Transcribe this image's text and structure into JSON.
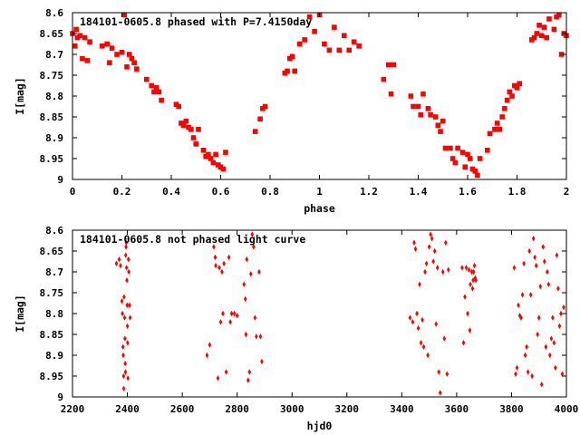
{
  "colors": {
    "marker": "#ff0000",
    "axis": "#000000",
    "background": "#ffffff"
  },
  "chart_data": [
    {
      "type": "scatter",
      "title": "184101-0605.8 phased with P=7.4150day",
      "xlabel": "phase",
      "ylabel": "I[mag]",
      "xlim": [
        0,
        2
      ],
      "ylim": [
        8.6,
        9
      ],
      "y_inverted": true,
      "grid": false,
      "legend": "none",
      "xticks": [
        "0",
        "0.2",
        "0.4",
        "0.6",
        "0.8",
        "1",
        "1.2",
        "1.4",
        "1.6",
        "1.8",
        "2"
      ],
      "yticks": [
        "8.6",
        "8.65",
        "8.7",
        "8.75",
        "8.8",
        "8.85",
        "8.9",
        "8.95",
        "9"
      ],
      "points": [
        [
          0.0,
          8.65
        ],
        [
          0.01,
          8.68
        ],
        [
          0.015,
          8.64
        ],
        [
          0.02,
          8.66
        ],
        [
          0.03,
          8.655
        ],
        [
          0.04,
          8.71
        ],
        [
          0.05,
          8.66
        ],
        [
          0.06,
          8.715
        ],
        [
          0.07,
          8.67
        ],
        [
          0.12,
          8.68
        ],
        [
          0.14,
          8.675
        ],
        [
          0.15,
          8.72
        ],
        [
          0.16,
          8.685
        ],
        [
          0.18,
          8.7
        ],
        [
          0.2,
          8.695
        ],
        [
          0.21,
          8.605
        ],
        [
          0.22,
          8.73
        ],
        [
          0.23,
          8.7
        ],
        [
          0.24,
          8.71
        ],
        [
          0.25,
          8.72
        ],
        [
          0.26,
          8.735
        ],
        [
          0.3,
          8.76
        ],
        [
          0.32,
          8.775
        ],
        [
          0.33,
          8.79
        ],
        [
          0.34,
          8.78
        ],
        [
          0.35,
          8.79
        ],
        [
          0.36,
          8.81
        ],
        [
          0.42,
          8.82
        ],
        [
          0.43,
          8.825
        ],
        [
          0.44,
          8.865
        ],
        [
          0.45,
          8.87
        ],
        [
          0.46,
          8.86
        ],
        [
          0.47,
          8.875
        ],
        [
          0.48,
          8.88
        ],
        [
          0.49,
          8.9
        ],
        [
          0.5,
          8.915
        ],
        [
          0.51,
          8.88
        ],
        [
          0.53,
          8.93
        ],
        [
          0.54,
          8.945
        ],
        [
          0.55,
          8.94
        ],
        [
          0.56,
          8.95
        ],
        [
          0.57,
          8.96
        ],
        [
          0.58,
          8.94
        ],
        [
          0.59,
          8.965
        ],
        [
          0.6,
          8.97
        ],
        [
          0.61,
          8.975
        ],
        [
          0.62,
          8.935
        ],
        [
          0.74,
          8.885
        ],
        [
          0.76,
          8.855
        ],
        [
          0.77,
          8.83
        ],
        [
          0.78,
          8.825
        ],
        [
          0.86,
          8.745
        ],
        [
          0.87,
          8.74
        ],
        [
          0.88,
          8.71
        ],
        [
          0.89,
          8.705
        ],
        [
          0.9,
          8.74
        ],
        [
          0.92,
          8.675
        ],
        [
          0.94,
          8.665
        ],
        [
          0.96,
          8.61
        ],
        [
          0.98,
          8.645
        ],
        [
          1.0,
          8.605
        ],
        [
          1.02,
          8.675
        ],
        [
          1.04,
          8.69
        ],
        [
          1.06,
          8.635
        ],
        [
          1.08,
          8.69
        ],
        [
          1.1,
          8.655
        ],
        [
          1.12,
          8.69
        ],
        [
          1.14,
          8.67
        ],
        [
          1.16,
          8.68
        ],
        [
          1.26,
          8.76
        ],
        [
          1.28,
          8.725
        ],
        [
          1.29,
          8.795
        ],
        [
          1.3,
          8.725
        ],
        [
          1.37,
          8.8
        ],
        [
          1.38,
          8.825
        ],
        [
          1.4,
          8.825
        ],
        [
          1.41,
          8.845
        ],
        [
          1.42,
          8.795
        ],
        [
          1.44,
          8.83
        ],
        [
          1.45,
          8.845
        ],
        [
          1.47,
          8.85
        ],
        [
          1.48,
          8.87
        ],
        [
          1.49,
          8.885
        ],
        [
          1.5,
          8.86
        ],
        [
          1.51,
          8.925
        ],
        [
          1.53,
          8.925
        ],
        [
          1.54,
          8.95
        ],
        [
          1.55,
          8.96
        ],
        [
          1.56,
          8.925
        ],
        [
          1.58,
          8.935
        ],
        [
          1.59,
          8.97
        ],
        [
          1.6,
          8.94
        ],
        [
          1.61,
          8.95
        ],
        [
          1.62,
          8.975
        ],
        [
          1.63,
          8.98
        ],
        [
          1.64,
          8.99
        ],
        [
          1.65,
          8.95
        ],
        [
          1.68,
          8.93
        ],
        [
          1.69,
          8.89
        ],
        [
          1.71,
          8.88
        ],
        [
          1.72,
          8.865
        ],
        [
          1.73,
          8.88
        ],
        [
          1.74,
          8.85
        ],
        [
          1.75,
          8.83
        ],
        [
          1.76,
          8.81
        ],
        [
          1.77,
          8.79
        ],
        [
          1.78,
          8.8
        ],
        [
          1.79,
          8.775
        ],
        [
          1.8,
          8.78
        ],
        [
          1.81,
          8.77
        ],
        [
          1.86,
          8.665
        ],
        [
          1.87,
          8.66
        ],
        [
          1.88,
          8.65
        ],
        [
          1.89,
          8.63
        ],
        [
          1.9,
          8.655
        ],
        [
          1.91,
          8.635
        ],
        [
          1.92,
          8.66
        ],
        [
          1.93,
          8.615
        ],
        [
          1.95,
          8.64
        ],
        [
          1.96,
          8.61
        ],
        [
          1.97,
          8.605
        ],
        [
          1.98,
          8.7
        ],
        [
          1.99,
          8.65
        ],
        [
          2.0,
          8.655
        ]
      ]
    },
    {
      "type": "scatter",
      "title": "184101-0605.8 not phased light curve",
      "xlabel": "hjd0",
      "ylabel": "I[mag]",
      "xlim": [
        2200,
        4000
      ],
      "ylim": [
        8.6,
        9
      ],
      "y_inverted": true,
      "grid": false,
      "legend": "none",
      "xticks": [
        "2200",
        "2400",
        "2600",
        "2800",
        "3000",
        "3200",
        "3400",
        "3600",
        "3800",
        "4000"
      ],
      "yticks": [
        "8.6",
        "8.65",
        "8.7",
        "8.75",
        "8.8",
        "8.85",
        "8.9",
        "8.95",
        "9"
      ],
      "points": [
        [
          2360,
          8.68
        ],
        [
          2370,
          8.67
        ],
        [
          2375,
          8.685
        ],
        [
          2380,
          8.77
        ],
        [
          2382,
          8.8
        ],
        [
          2384,
          8.88
        ],
        [
          2385,
          8.9
        ],
        [
          2386,
          8.95
        ],
        [
          2387,
          8.98
        ],
        [
          2388,
          8.76
        ],
        [
          2390,
          8.81
        ],
        [
          2391,
          8.86
        ],
        [
          2392,
          8.92
        ],
        [
          2393,
          8.94
        ],
        [
          2394,
          8.66
        ],
        [
          2395,
          8.64
        ],
        [
          2396,
          8.63
        ],
        [
          2397,
          8.69
        ],
        [
          2398,
          8.72
        ],
        [
          2399,
          8.78
        ],
        [
          2400,
          8.83
        ],
        [
          2401,
          8.87
        ],
        [
          2402,
          8.955
        ],
        [
          2404,
          8.67
        ],
        [
          2405,
          8.7
        ],
        [
          2408,
          8.78
        ],
        [
          2410,
          8.81
        ],
        [
          2690,
          8.9
        ],
        [
          2700,
          8.875
        ],
        [
          2715,
          8.64
        ],
        [
          2720,
          8.665
        ],
        [
          2722,
          8.685
        ],
        [
          2730,
          8.955
        ],
        [
          2735,
          8.69
        ],
        [
          2740,
          8.82
        ],
        [
          2745,
          8.7
        ],
        [
          2748,
          8.8
        ],
        [
          2752,
          8.68
        ],
        [
          2760,
          8.94
        ],
        [
          2770,
          8.665
        ],
        [
          2775,
          8.82
        ],
        [
          2780,
          8.8
        ],
        [
          2790,
          8.8
        ],
        [
          2800,
          8.805
        ],
        [
          2825,
          8.73
        ],
        [
          2830,
          8.765
        ],
        [
          2832,
          8.85
        ],
        [
          2835,
          8.67
        ],
        [
          2840,
          8.96
        ],
        [
          2845,
          8.94
        ],
        [
          2850,
          8.705
        ],
        [
          2855,
          8.61
        ],
        [
          2860,
          8.64
        ],
        [
          2865,
          8.81
        ],
        [
          2870,
          8.855
        ],
        [
          2880,
          8.7
        ],
        [
          2885,
          8.855
        ],
        [
          2890,
          8.915
        ],
        [
          3430,
          8.81
        ],
        [
          3440,
          8.82
        ],
        [
          3445,
          8.63
        ],
        [
          3450,
          8.645
        ],
        [
          3455,
          8.8
        ],
        [
          3460,
          8.835
        ],
        [
          3465,
          8.73
        ],
        [
          3470,
          8.87
        ],
        [
          3475,
          8.815
        ],
        [
          3480,
          8.88
        ],
        [
          3485,
          8.7
        ],
        [
          3490,
          8.68
        ],
        [
          3495,
          8.9
        ],
        [
          3500,
          8.64
        ],
        [
          3505,
          8.61
        ],
        [
          3510,
          8.62
        ],
        [
          3515,
          8.675
        ],
        [
          3520,
          8.65
        ],
        [
          3525,
          8.825
        ],
        [
          3530,
          8.69
        ],
        [
          3535,
          8.94
        ],
        [
          3540,
          8.99
        ],
        [
          3550,
          8.7
        ],
        [
          3555,
          8.86
        ],
        [
          3560,
          8.63
        ],
        [
          3565,
          8.945
        ],
        [
          3570,
          8.695
        ],
        [
          3620,
          8.69
        ],
        [
          3625,
          8.87
        ],
        [
          3630,
          8.76
        ],
        [
          3635,
          8.69
        ],
        [
          3640,
          8.8
        ],
        [
          3645,
          8.695
        ],
        [
          3648,
          8.84
        ],
        [
          3650,
          8.73
        ],
        [
          3655,
          8.7
        ],
        [
          3658,
          8.74
        ],
        [
          3660,
          8.72
        ],
        [
          3662,
          8.7
        ],
        [
          3665,
          8.685
        ],
        [
          3668,
          8.715
        ],
        [
          3670,
          8.72
        ],
        [
          3810,
          8.69
        ],
        [
          3815,
          8.945
        ],
        [
          3820,
          8.93
        ],
        [
          3825,
          8.78
        ],
        [
          3830,
          8.805
        ],
        [
          3835,
          8.81
        ],
        [
          3840,
          8.755
        ],
        [
          3845,
          8.68
        ],
        [
          3850,
          8.9
        ],
        [
          3855,
          8.88
        ],
        [
          3860,
          8.94
        ],
        [
          3865,
          8.65
        ],
        [
          3870,
          8.755
        ],
        [
          3875,
          8.95
        ],
        [
          3880,
          8.62
        ],
        [
          3885,
          8.665
        ],
        [
          3890,
          8.685
        ],
        [
          3895,
          8.85
        ],
        [
          3900,
          8.81
        ],
        [
          3905,
          8.735
        ],
        [
          3910,
          8.97
        ],
        [
          3915,
          8.64
        ],
        [
          3920,
          8.675
        ],
        [
          3925,
          8.88
        ],
        [
          3930,
          8.7
        ],
        [
          3935,
          8.73
        ],
        [
          3940,
          8.9
        ],
        [
          3945,
          8.86
        ],
        [
          3950,
          8.81
        ],
        [
          3955,
          8.87
        ],
        [
          3960,
          8.93
        ],
        [
          3965,
          8.66
        ],
        [
          3970,
          8.74
        ],
        [
          3975,
          8.83
        ],
        [
          3980,
          8.8
        ],
        [
          3985,
          8.945
        ],
        [
          3990,
          8.785
        ]
      ]
    }
  ]
}
